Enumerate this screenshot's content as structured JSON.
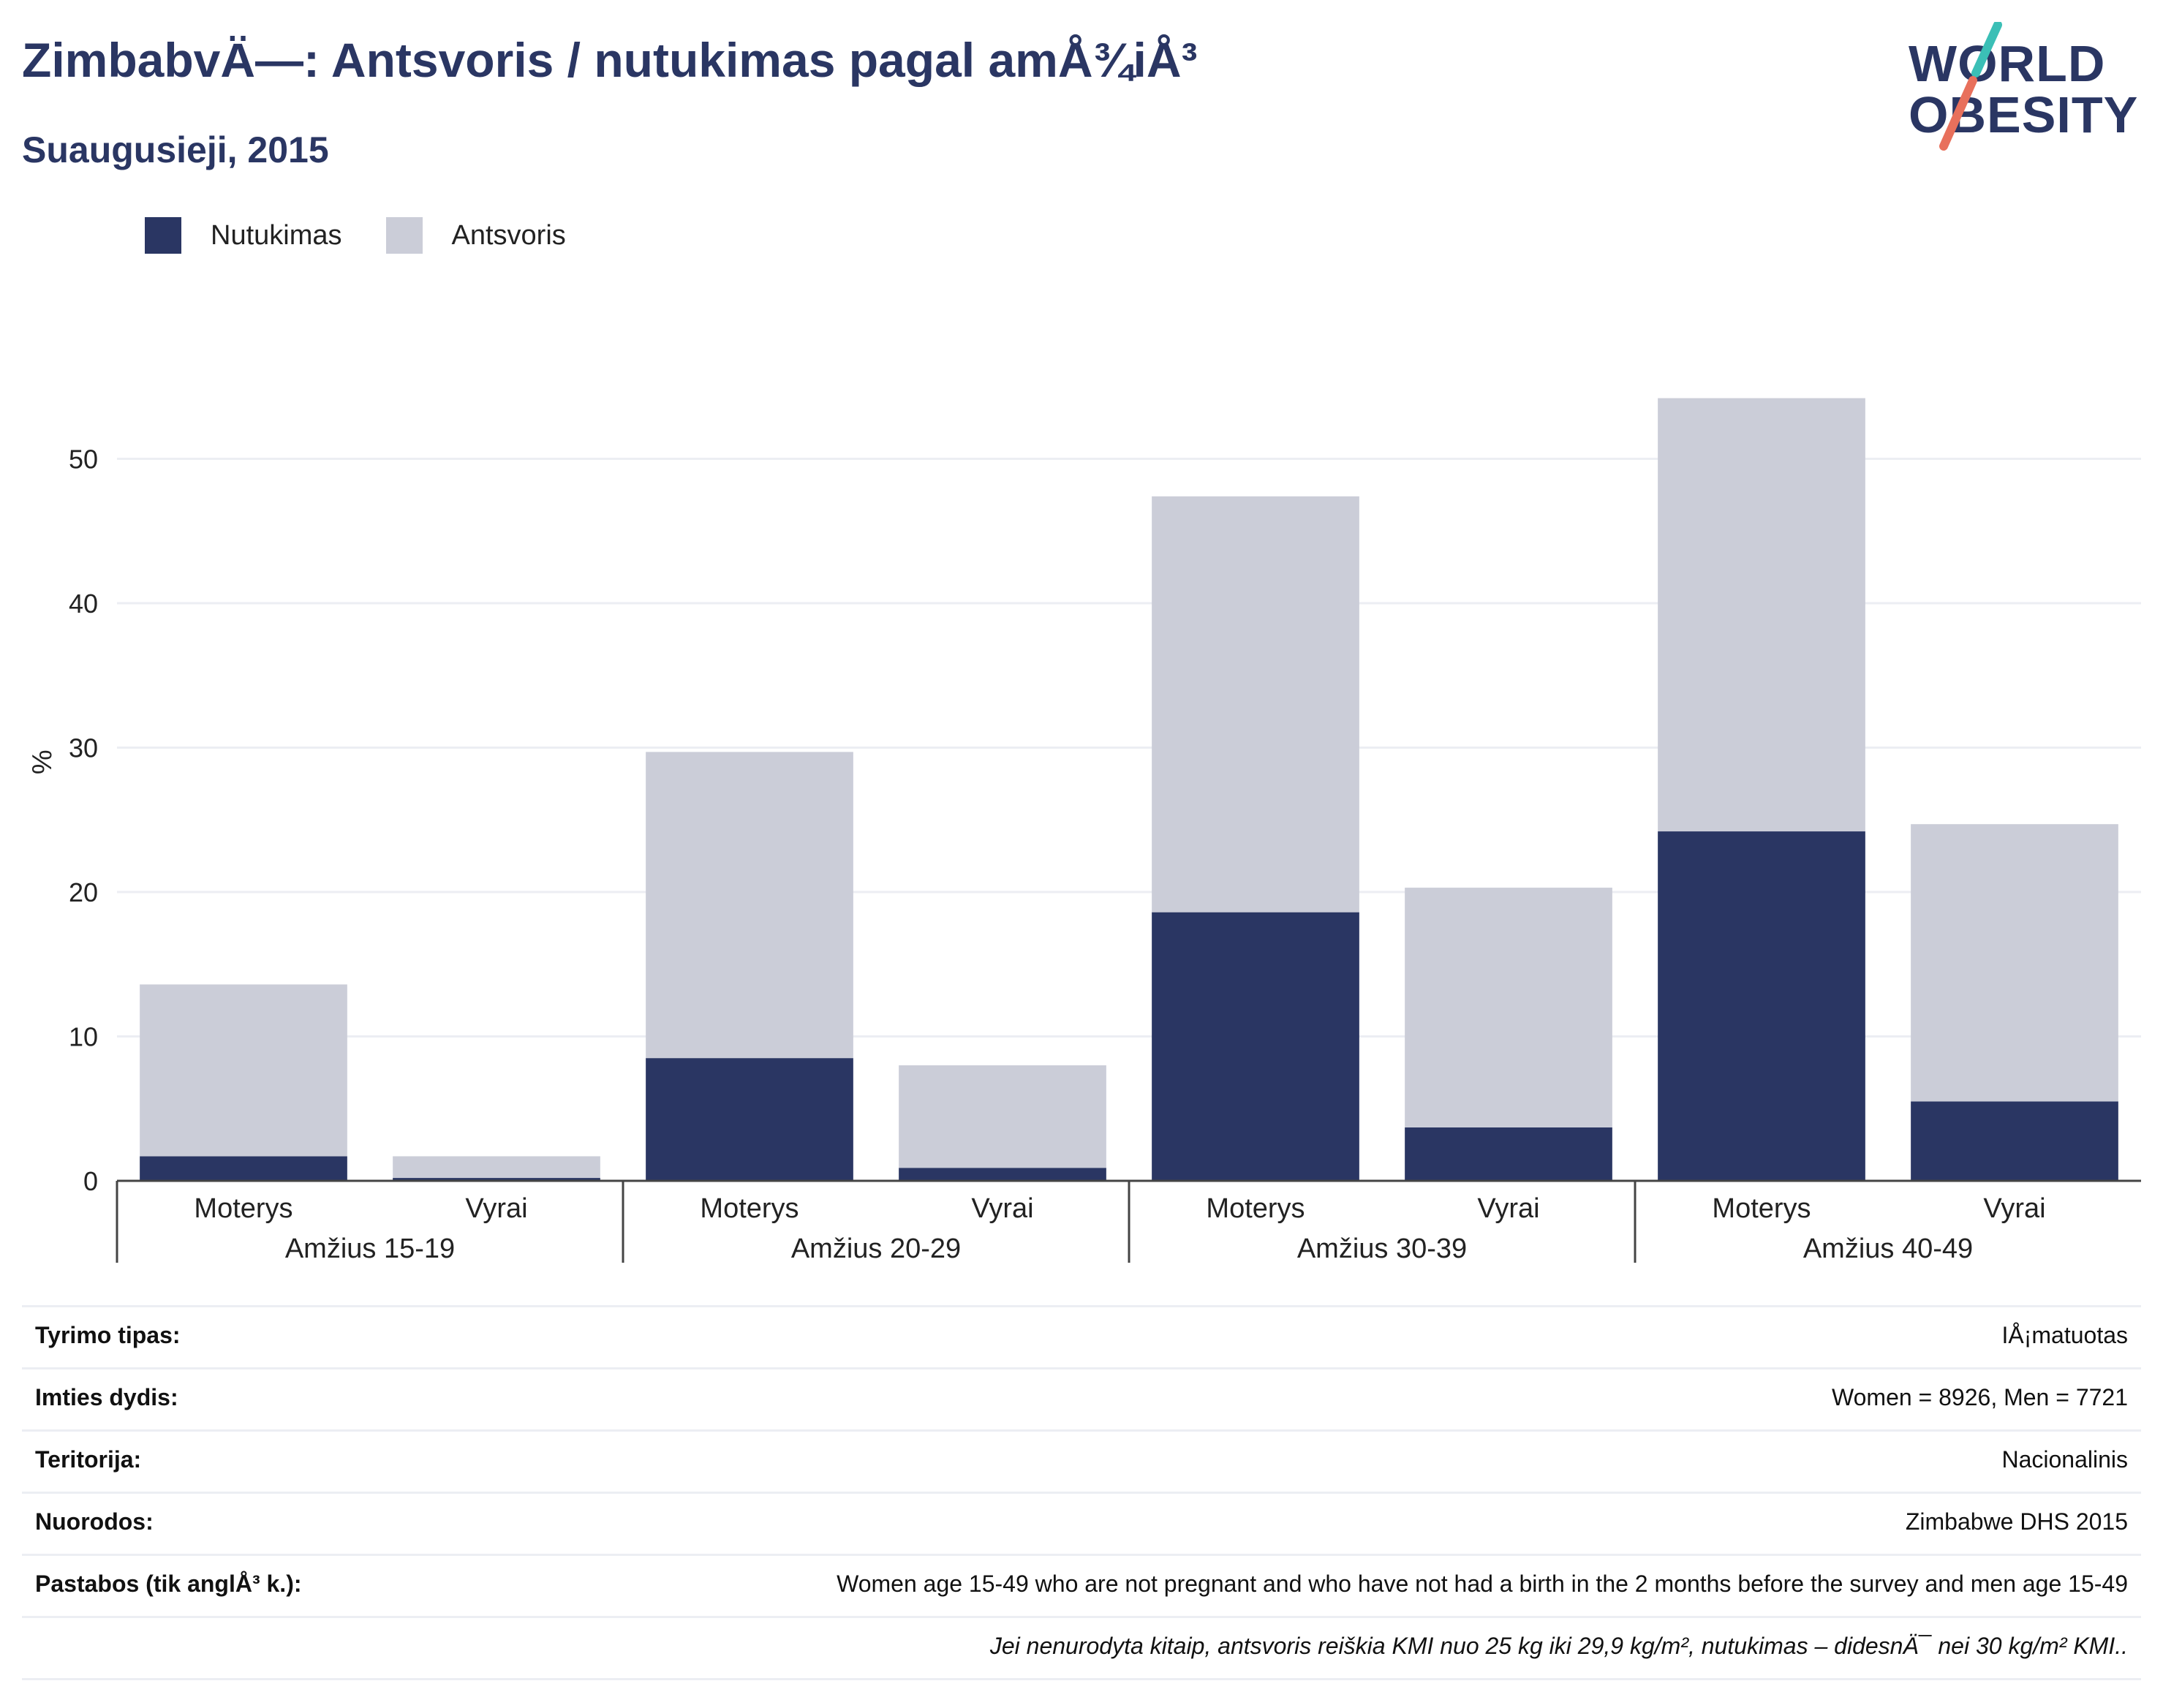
{
  "header": {
    "title": "ZimbabvÄ—: Antsvoris / nutukimas pagal amÅ¾iÅ³",
    "subtitle": "Suaugusieji, 2015"
  },
  "logo": {
    "line1": "WORLD",
    "line2": "OBESITY",
    "accent_teal": "#3bbfb6",
    "accent_coral": "#e8705c"
  },
  "legend": [
    {
      "label": "Nutukimas",
      "color": "#2a3663"
    },
    {
      "label": "Antsvoris",
      "color": "#cbcdd8"
    }
  ],
  "chart_data": {
    "type": "bar",
    "stacked": true,
    "ylabel": "%",
    "ylim": [
      0,
      58
    ],
    "yticks": [
      0,
      10,
      20,
      30,
      40,
      50
    ],
    "grid": true,
    "legend_position": "top-left",
    "groups": [
      "Amžius 15-19",
      "Amžius 20-29",
      "Amžius 30-39",
      "Amžius 40-49"
    ],
    "categories": [
      "Moterys",
      "Vyrai",
      "Moterys",
      "Vyrai",
      "Moterys",
      "Vyrai",
      "Moterys",
      "Vyrai"
    ],
    "series": [
      {
        "name": "Nutukimas",
        "color": "#2a3663",
        "values": [
          1.7,
          0.2,
          8.5,
          0.9,
          18.6,
          3.7,
          24.2,
          5.5
        ]
      },
      {
        "name": "Antsvoris",
        "color": "#cbcdd8",
        "values": [
          11.9,
          1.5,
          21.2,
          7.1,
          28.8,
          16.6,
          30.0,
          19.2
        ]
      }
    ]
  },
  "info": [
    {
      "label": "Tyrimo tipas:",
      "value": "IÅ¡matuotas"
    },
    {
      "label": "Imties dydis:",
      "value": "Women = 8926, Men = 7721"
    },
    {
      "label": "Teritorija:",
      "value": "Nacionalinis"
    },
    {
      "label": "Nuorodos:",
      "value": "Zimbabwe DHS 2015"
    },
    {
      "label": "Pastabos (tik anglÅ³ k.):",
      "value": "Women age 15-49 who are not pregnant and who have not had a birth in the 2 months before the survey and men age 15-49"
    },
    {
      "label": "",
      "value": "Jei nenurodyta kitaip, antsvoris reiškia KMI nuo 25 kg iki 29,9 kg/m², nutukimas – didesnÄ¯ nei 30 kg/m² KMI.."
    }
  ]
}
